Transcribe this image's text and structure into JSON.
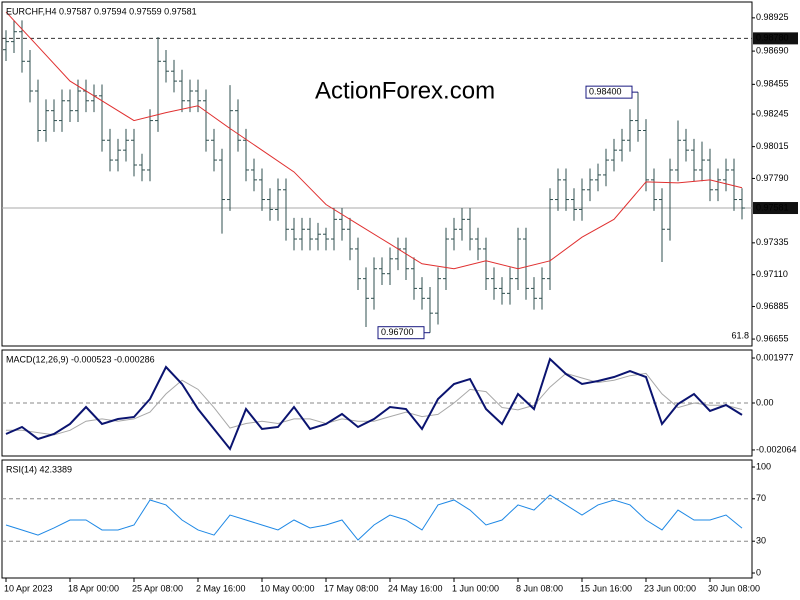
{
  "chart_data": [
    {
      "type": "ohlc",
      "title": "EURCHF,H4 0.97587 0.97594 0.97559 0.97581",
      "watermark": "ActionForex.com",
      "color": "#2f4f4f",
      "categories": [
        "10 Apr 2023",
        null,
        null,
        null,
        null,
        null,
        null,
        null,
        "18 Apr 00:00",
        null,
        null,
        null,
        null,
        null,
        null,
        null,
        "25 Apr 08:00",
        null,
        null,
        null,
        null,
        null,
        null,
        null,
        "2 May 16:00",
        null,
        null,
        null,
        null,
        null,
        null,
        null,
        "10 May 00:00",
        null,
        null,
        null,
        null,
        null,
        null,
        null,
        "17 May 08:00",
        null,
        null,
        null,
        null,
        null,
        null,
        null,
        "24 May 16:00",
        null,
        null,
        null,
        null,
        null,
        null,
        null,
        "1 Jun 00:00",
        null,
        null,
        null,
        null,
        null,
        null,
        null,
        "8 Jun 08:00",
        null,
        null,
        null,
        null,
        null,
        null,
        null,
        "15 Jun 16:00",
        null,
        null,
        null,
        null,
        null,
        null,
        null,
        "23 Jun 00:00",
        null,
        null,
        null,
        null,
        null,
        null,
        null,
        "30 Jun 08:00",
        null,
        null,
        null,
        null
      ],
      "open": [
        0.987,
        0.98757,
        0.98827,
        0.98618,
        0.98408,
        0.98129,
        0.98269,
        0.98199,
        0.98339,
        0.98269,
        0.98408,
        0.98339,
        0.98374,
        0.9806,
        0.9792,
        0.9799,
        0.9806,
        0.97885,
        0.9785,
        0.98199,
        0.98618,
        0.98548,
        0.98478,
        0.98339,
        0.98408,
        0.98339,
        0.9806,
        0.9792,
        0.97641,
        0.98269,
        0.9806,
        0.9785,
        0.9778,
        0.97641,
        0.97571,
        0.9771,
        0.97431,
        0.97362,
        0.97431,
        0.97362,
        0.97396,
        0.97362,
        0.97501,
        0.97431,
        0.97292,
        0.97082,
        0.96943,
        0.97152,
        0.97117,
        0.97222,
        0.97292,
        0.97152,
        0.97013,
        0.96943,
        0.96838,
        0.97082,
        0.97362,
        0.97431,
        0.97501,
        0.97362,
        0.97292,
        0.97082,
        0.97013,
        0.96978,
        0.97082,
        0.97362,
        0.97013,
        0.96943,
        0.97082,
        0.97641,
        0.9778,
        0.97641,
        0.97571,
        0.9771,
        0.9778,
        0.97815,
        0.9792,
        0.9799,
        0.9806,
        0.98199,
        0.98129,
        0.9778,
        0.97641,
        0.97431,
        0.9785,
        0.9806,
        0.9799,
        0.9785,
        0.9792,
        0.9771,
        0.9778,
        0.9785,
        0.97641
      ],
      "high": [
        0.98837,
        0.98907,
        0.98907,
        0.98698,
        0.98488,
        0.98349,
        0.98349,
        0.98419,
        0.98419,
        0.98488,
        0.98488,
        0.98454,
        0.98454,
        0.9814,
        0.9807,
        0.9814,
        0.9814,
        0.97965,
        0.98279,
        0.9879,
        0.98698,
        0.98628,
        0.98558,
        0.98488,
        0.98488,
        0.98419,
        0.9814,
        0.98,
        0.9845,
        0.98349,
        0.9814,
        0.9793,
        0.9786,
        0.97721,
        0.9779,
        0.9779,
        0.97511,
        0.97511,
        0.97511,
        0.97476,
        0.97442,
        0.97581,
        0.97581,
        0.97511,
        0.97372,
        0.97162,
        0.97232,
        0.97232,
        0.97302,
        0.97372,
        0.97372,
        0.97232,
        0.97093,
        0.97023,
        0.97162,
        0.97442,
        0.97511,
        0.97581,
        0.97581,
        0.97442,
        0.97372,
        0.97162,
        0.97093,
        0.97162,
        0.97442,
        0.97442,
        0.97093,
        0.97162,
        0.97721,
        0.9786,
        0.9786,
        0.97721,
        0.9779,
        0.9786,
        0.97895,
        0.98,
        0.9807,
        0.9814,
        0.98279,
        0.984,
        0.98209,
        0.9786,
        0.97721,
        0.9793,
        0.982,
        0.9814,
        0.9807,
        0.9805,
        0.98,
        0.9786,
        0.9793,
        0.9793,
        0.97721
      ],
      "low": [
        0.9862,
        0.98677,
        0.98538,
        0.98328,
        0.98049,
        0.98049,
        0.98119,
        0.98119,
        0.98189,
        0.98189,
        0.98259,
        0.98259,
        0.9798,
        0.9784,
        0.9784,
        0.9791,
        0.97805,
        0.9777,
        0.9777,
        0.98119,
        0.98468,
        0.98398,
        0.98259,
        0.98259,
        0.98259,
        0.9798,
        0.9784,
        0.974,
        0.97561,
        0.9798,
        0.9777,
        0.977,
        0.97561,
        0.97491,
        0.97491,
        0.97351,
        0.97282,
        0.97282,
        0.97282,
        0.97282,
        0.97282,
        0.97282,
        0.97351,
        0.97212,
        0.97002,
        0.9674,
        0.96863,
        0.97037,
        0.97037,
        0.97142,
        0.97072,
        0.96933,
        0.96863,
        0.967,
        0.96758,
        0.97002,
        0.97282,
        0.97351,
        0.97282,
        0.97212,
        0.97002,
        0.96933,
        0.96898,
        0.96898,
        0.97002,
        0.96933,
        0.96863,
        0.96863,
        0.97002,
        0.97561,
        0.97561,
        0.97491,
        0.97491,
        0.9763,
        0.977,
        0.97735,
        0.9784,
        0.9791,
        0.9798,
        0.98049,
        0.977,
        0.97561,
        0.972,
        0.97351,
        0.9777,
        0.9791,
        0.9777,
        0.9777,
        0.9763,
        0.9763,
        0.977,
        0.97561,
        0.97501
      ],
      "close": [
        0.98757,
        0.98827,
        0.98618,
        0.98408,
        0.98129,
        0.98269,
        0.98199,
        0.98339,
        0.98269,
        0.98408,
        0.98339,
        0.98374,
        0.9806,
        0.9792,
        0.9799,
        0.9806,
        0.97885,
        0.9785,
        0.98199,
        0.98618,
        0.98548,
        0.98478,
        0.98339,
        0.98408,
        0.98339,
        0.9806,
        0.9792,
        0.97641,
        0.98269,
        0.9806,
        0.9785,
        0.9778,
        0.97641,
        0.97571,
        0.9771,
        0.97431,
        0.97362,
        0.97431,
        0.97362,
        0.97396,
        0.97362,
        0.97501,
        0.97431,
        0.97292,
        0.97082,
        0.96943,
        0.97152,
        0.97117,
        0.97222,
        0.97292,
        0.97152,
        0.97013,
        0.96943,
        0.96838,
        0.97082,
        0.97362,
        0.97431,
        0.97501,
        0.97362,
        0.97292,
        0.97082,
        0.97013,
        0.96978,
        0.97082,
        0.97362,
        0.97013,
        0.96943,
        0.97082,
        0.97641,
        0.9778,
        0.97641,
        0.97571,
        0.9771,
        0.9778,
        0.97815,
        0.9792,
        0.9799,
        0.9806,
        0.98199,
        0.98129,
        0.9778,
        0.97641,
        0.97431,
        0.9785,
        0.9806,
        0.9799,
        0.9785,
        0.9792,
        0.9771,
        0.9778,
        0.9785,
        0.97641,
        0.97581
      ],
      "ma": {
        "color": "#e03030",
        "x": [
          0,
          4,
          8,
          12,
          16,
          20,
          24,
          28,
          32,
          36,
          40,
          44,
          48,
          52,
          56,
          60,
          64,
          68,
          72,
          76,
          80,
          84,
          88,
          92
        ],
        "values": [
          0.98967,
          0.98723,
          0.98478,
          0.98339,
          0.98199,
          0.98255,
          0.98304,
          0.98143,
          0.9799,
          0.97836,
          0.97606,
          0.97466,
          0.97327,
          0.97187,
          0.97152,
          0.97208,
          0.97152,
          0.97208,
          0.97375,
          0.97501,
          0.97766,
          0.97759,
          0.9778,
          0.97724
        ]
      },
      "levels": [
        {
          "value": 0.9878,
          "label": "0.98780",
          "style": "dashed"
        },
        {
          "value": 0.97581,
          "label": "0.97581",
          "style": "solid"
        }
      ],
      "annotations": [
        {
          "value": 0.984,
          "label": "0.98400"
        },
        {
          "value": 0.967,
          "label": "0.96700"
        }
      ],
      "fib_label": "61.8",
      "ylim": [
        0.96606,
        0.99037
      ],
      "yticks": [
        {
          "value": 0.98925,
          "label": "0.98925"
        },
        {
          "value": 0.9869,
          "label": "0.98690"
        },
        {
          "value": 0.98455,
          "label": "0.98455"
        },
        {
          "value": 0.98245,
          "label": "0.98245"
        },
        {
          "value": 0.98015,
          "label": "0.98015"
        },
        {
          "value": 0.9779,
          "label": "0.97790"
        },
        {
          "value": 0.97335,
          "label": "0.97335"
        },
        {
          "value": 0.9711,
          "label": "0.97110"
        },
        {
          "value": 0.96885,
          "label": "0.96885"
        },
        {
          "value": 0.96655,
          "label": "0.96655"
        }
      ]
    },
    {
      "type": "macd",
      "title": "MACD(12,26,9) -0.000523 -0.000286",
      "zero_line": true,
      "x": [
        0,
        2,
        4,
        6,
        8,
        10,
        12,
        14,
        16,
        18,
        20,
        22,
        24,
        26,
        28,
        30,
        32,
        34,
        36,
        38,
        40,
        42,
        44,
        46,
        48,
        50,
        52,
        54,
        56,
        58,
        60,
        62,
        64,
        66,
        68,
        70,
        72,
        74,
        76,
        78,
        80,
        82,
        84,
        86,
        88,
        90,
        92
      ],
      "lines": [
        {
          "color": "#0b1470",
          "values": [
            -0.001362,
            -0.001054,
            -0.001581,
            -0.001362,
            -0.000922,
            -0.000176,
            -0.000922,
            -0.000703,
            -0.000615,
            0.000176,
            0.001581,
            0.000835,
            -0.000264,
            -0.001142,
            -0.00202,
            -0.000264,
            -0.001142,
            -0.001054,
            -0.000176,
            -0.001142,
            -0.000922,
            -0.000483,
            -0.001054,
            -0.000703,
            -0.000176,
            -0.000264,
            -0.001142,
            0.000176,
            0.000835,
            0.001054,
            -0.000264,
            -0.000922,
            0.000395,
            -0.000264,
            0.001933,
            0.001274,
            0.000835,
            0.000966,
            0.001142,
            0.001406,
            0.001142,
            -0.000922,
            -4.4e-05,
            0.000395,
            -0.000351,
            -8.8e-05,
            -0.000523
          ]
        },
        {
          "color": "#a8a8a8",
          "values": [
            -0.0012,
            -0.0012,
            -0.0013,
            -0.0014,
            -0.0012,
            -0.0008,
            -0.0007,
            -0.0008,
            -0.0007,
            -0.0004,
            0.0004,
            0.001,
            0.0006,
            -0.0002,
            -0.0011,
            -0.0009,
            -0.0008,
            -0.0009,
            -0.0007,
            -0.0007,
            -0.0009,
            -0.0007,
            -0.0008,
            -0.0008,
            -0.0006,
            -0.0004,
            -0.0006,
            -0.0005,
            0,
            0.0006,
            0.0005,
            -0.0002,
            -0.0003,
            -0.0001,
            0.0007,
            0.0013,
            0.0011,
            0.0009,
            0.001,
            0.0012,
            0.0013,
            0.0004,
            -0.0002,
            0,
            -0.0001,
            -0.0001,
            -0.000286
          ]
        }
      ],
      "ylim": [
        -0.00233,
        0.00233
      ],
      "yticks": [
        {
          "value": 0.001977,
          "label": "0.001977"
        },
        {
          "value": 0,
          "label": "0.00"
        },
        {
          "value": -0.002064,
          "label": "-0.002064"
        }
      ]
    },
    {
      "type": "rsi",
      "title": "RSI(14) 42.3389",
      "color": "#1e88e5",
      "x": [
        0,
        2,
        4,
        6,
        8,
        10,
        12,
        14,
        16,
        18,
        20,
        22,
        24,
        26,
        28,
        30,
        32,
        34,
        36,
        38,
        40,
        42,
        44,
        46,
        48,
        50,
        52,
        54,
        56,
        58,
        60,
        62,
        64,
        66,
        68,
        70,
        72,
        74,
        76,
        78,
        80,
        82,
        84,
        86,
        88,
        90,
        92
      ],
      "values": [
        45.3,
        40.6,
        35.8,
        42.5,
        50,
        50,
        40.6,
        40.6,
        45.3,
        68.9,
        64.2,
        50,
        40.6,
        35.8,
        54.7,
        50,
        45.3,
        40.6,
        50,
        42.5,
        45.3,
        50,
        31.1,
        45.3,
        54.7,
        50,
        40.6,
        64.2,
        68.9,
        59.4,
        45.3,
        50,
        64.2,
        59.4,
        73.6,
        64.2,
        54.7,
        64.2,
        68.9,
        64.2,
        50,
        40.6,
        59.4,
        50,
        50,
        54.7,
        42.3389
      ],
      "levels": [
        70,
        30
      ],
      "ylim": [
        -4.7,
        106.6
      ],
      "yticks": [
        0,
        30,
        70,
        100
      ]
    }
  ]
}
